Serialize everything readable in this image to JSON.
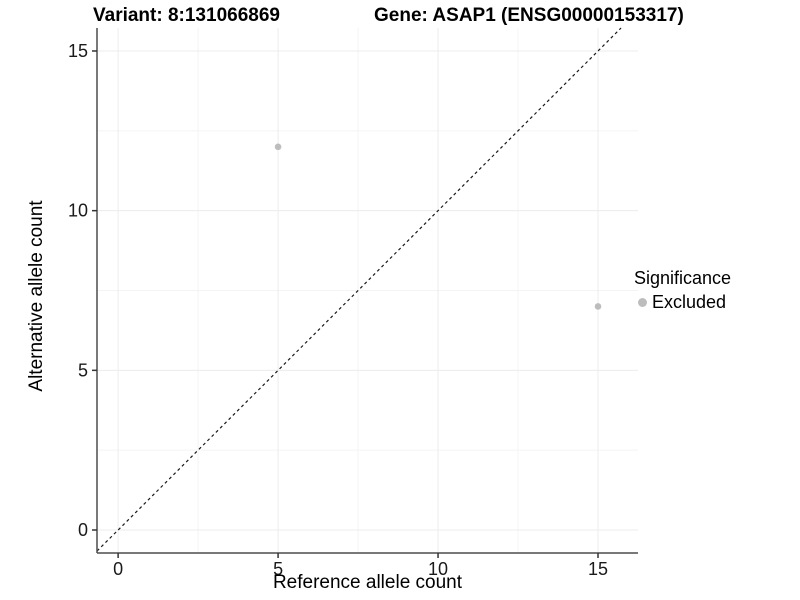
{
  "title": {
    "variant": "Variant: 8:131066869",
    "gene": "Gene: ASAP1 (ENSG00000153317)"
  },
  "legend": {
    "title": "Significance",
    "items": [
      {
        "label": "Excluded",
        "color": "#bdbdbd"
      }
    ]
  },
  "chart_data": {
    "type": "scatter",
    "title": "Variant: 8:131066869  |  Gene: ASAP1 (ENSG00000153317)",
    "xlabel": "Reference allele count",
    "ylabel": "Alternative allele count",
    "xlim": [
      -0.66,
      16.25
    ],
    "ylim": [
      -0.72,
      15.72
    ],
    "x_ticks": [
      0,
      5,
      10,
      15
    ],
    "y_ticks": [
      0,
      5,
      10,
      15
    ],
    "x_minor_ticks": [
      2.5,
      7.5,
      12.5
    ],
    "y_minor_ticks": [
      2.5,
      7.5,
      12.5
    ],
    "grid": true,
    "legend_position": "right",
    "series": [
      {
        "name": "Excluded",
        "color": "#bdbdbd",
        "points": [
          {
            "x": 5,
            "y": 12
          },
          {
            "x": 15,
            "y": 7
          }
        ]
      }
    ],
    "reference_line": {
      "type": "identity",
      "slope": 1,
      "intercept": 0,
      "style": "dashed",
      "color": "#1a1a1a"
    }
  },
  "colors": {
    "background": "#ffffff",
    "axis_line": "#4d4d4d",
    "tick_mark": "#333333",
    "tick_label": "#1a1a1a",
    "grid_major": "#ececec",
    "grid_minor": "#f4f4f4",
    "point": "#bdbdbd"
  }
}
